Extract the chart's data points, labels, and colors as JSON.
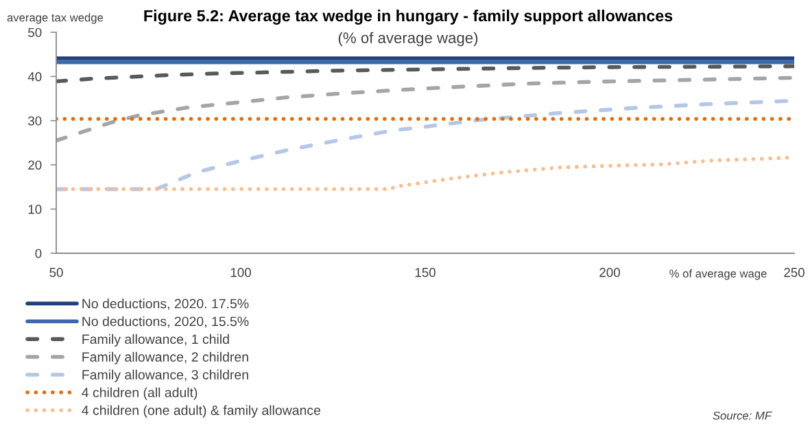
{
  "chart_data": {
    "type": "line",
    "title": "Figure 5.2: Average tax wedge in hungary - family support allowances",
    "subtitle": "(% of average wage)",
    "xlabel": "% of average wage",
    "ylabel": "average tax wedge",
    "annotations": [
      "Source: MF"
    ],
    "xlim": [
      50,
      250
    ],
    "xticks": [
      50,
      100,
      150,
      200,
      250
    ],
    "ylim": [
      0,
      50
    ],
    "yticks": [
      0,
      10,
      20,
      30,
      40,
      50
    ],
    "grid": false,
    "legend": "bottom left",
    "series": [
      {
        "name": "No deductions, 2020. 17.5%",
        "color": "#1f4079",
        "line_style": "solid",
        "x": [
          50,
          250
        ],
        "values": [
          44.1,
          44.1
        ]
      },
      {
        "name": "No deductions, 2020, 15.5%",
        "color": "#3d69ab",
        "line_style": "solid",
        "x": [
          50,
          250
        ],
        "values": [
          43.2,
          43.2
        ]
      },
      {
        "name": "Family allowance, 1 child",
        "color": "#595959",
        "line_style": "dashed",
        "x": [
          50,
          60,
          70,
          80,
          90,
          100,
          125,
          150,
          175,
          200,
          225,
          250
        ],
        "values": [
          38.9,
          39.5,
          39.9,
          40.3,
          40.6,
          40.8,
          41.3,
          41.6,
          41.9,
          42.1,
          42.2,
          42.3
        ]
      },
      {
        "name": "Family allowance, 2 children",
        "color": "#a5a5a5",
        "line_style": "dashed",
        "x": [
          50,
          58,
          65,
          72,
          85,
          99,
          113,
          128,
          142,
          160,
          178,
          196,
          214,
          232,
          250
        ],
        "values": [
          25.5,
          27.7,
          29.6,
          31.1,
          32.9,
          34.1,
          35.3,
          36.2,
          36.9,
          37.7,
          38.4,
          38.8,
          39.1,
          39.4,
          39.7
        ]
      },
      {
        "name": "Family allowance, 3 children",
        "color": "#b4c7e7",
        "line_style": "dashed",
        "x": [
          50,
          77,
          80,
          88,
          99,
          113,
          128,
          142,
          147,
          164,
          186,
          207,
          228,
          250
        ],
        "values": [
          14.5,
          14.5,
          15.5,
          18.3,
          20.7,
          23.4,
          25.8,
          27.9,
          28.3,
          30.1,
          31.7,
          32.9,
          33.8,
          34.5
        ]
      },
      {
        "name": "4 children (all adult)",
        "color": "#e46c0a",
        "line_style": "dotted",
        "x": [
          50,
          250
        ],
        "values": [
          30.4,
          30.4
        ]
      },
      {
        "name": "4 children (one adult) & family allowance",
        "color": "#f9be8c",
        "line_style": "dotted",
        "x": [
          50,
          140,
          143,
          157,
          171,
          186,
          200,
          214,
          228,
          242,
          250
        ],
        "values": [
          14.5,
          14.5,
          15.2,
          16.9,
          18.3,
          19.4,
          19.8,
          20.1,
          21.0,
          21.4,
          21.7
        ]
      }
    ]
  }
}
